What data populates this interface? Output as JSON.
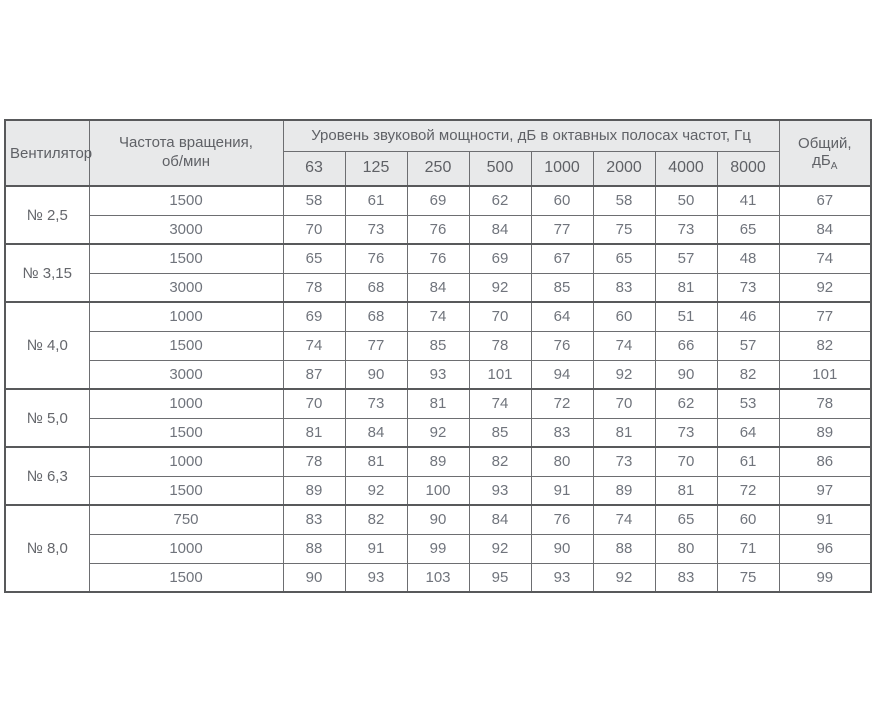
{
  "colors": {
    "header_bg": "#e8e9ea",
    "border": "#6d6e71",
    "border_heavy": "#58595b",
    "body_text": "#70747c",
    "header_text": "#5f6166",
    "highlight_red": "#e30613",
    "page_bg": "#ffffff"
  },
  "table": {
    "fan_header": "Вентилятор",
    "speed_header": "Частота вращения,\nоб/мин",
    "group_header": "Уровень звуковой мощности, дБ в октавных полосах частот, Гц",
    "freq_bands": [
      "63",
      "125",
      "250",
      "500",
      "1000",
      "2000",
      "4000",
      "8000"
    ],
    "total_header": "Общий, дБ",
    "total_header_sub": "А",
    "groups": [
      {
        "fan": "№ 2,5",
        "rows": [
          {
            "speed": "1500",
            "levels": [
              58,
              61,
              69,
              62,
              60,
              58,
              50,
              41
            ],
            "total": 67
          },
          {
            "speed": "3000",
            "levels": [
              70,
              73,
              76,
              84,
              77,
              75,
              73,
              65
            ],
            "total": 84
          }
        ]
      },
      {
        "fan": "№ 3,15",
        "rows": [
          {
            "speed": "1500",
            "levels": [
              65,
              76,
              76,
              69,
              67,
              65,
              57,
              48
            ],
            "total": 74
          },
          {
            "speed": "3000",
            "levels": [
              78,
              68,
              84,
              92,
              85,
              83,
              81,
              73
            ],
            "total": 92
          }
        ]
      },
      {
        "fan": "№ 4,0",
        "rows": [
          {
            "speed": "1000",
            "levels": [
              69,
              68,
              74,
              70,
              64,
              60,
              51,
              46
            ],
            "total": 77
          },
          {
            "speed": "1500",
            "levels": [
              74,
              77,
              85,
              78,
              76,
              74,
              66,
              57
            ],
            "total": 82
          },
          {
            "speed": "3000",
            "levels": [
              87,
              90,
              93,
              101,
              94,
              92,
              90,
              82
            ],
            "total": 101
          }
        ]
      },
      {
        "fan": "№ 5,0",
        "rows": [
          {
            "speed": "1000",
            "levels": [
              70,
              73,
              81,
              74,
              72,
              70,
              62,
              53
            ],
            "total": 78
          },
          {
            "speed": "1500",
            "levels": [
              81,
              84,
              92,
              85,
              83,
              81,
              73,
              64
            ],
            "total": 89
          }
        ]
      },
      {
        "fan": "№ 6,3",
        "rows": [
          {
            "speed": "1000",
            "levels": [
              78,
              81,
              89,
              82,
              80,
              73,
              70,
              61
            ],
            "total": 86
          },
          {
            "speed": "1500",
            "levels": [
              89,
              92,
              100,
              93,
              91,
              89,
              81,
              72
            ],
            "total": 97
          }
        ]
      },
      {
        "fan": "№ 8,0",
        "rows": [
          {
            "speed": "750",
            "levels": [
              83,
              82,
              90,
              84,
              76,
              74,
              65,
              60
            ],
            "total": 91,
            "highlighted": true
          },
          {
            "speed": "1000",
            "levels": [
              88,
              91,
              99,
              92,
              90,
              88,
              80,
              71
            ],
            "total": 96
          },
          {
            "speed": "1500",
            "levels": [
              90,
              93,
              103,
              95,
              93,
              92,
              83,
              75
            ],
            "total": 99
          }
        ]
      }
    ]
  }
}
